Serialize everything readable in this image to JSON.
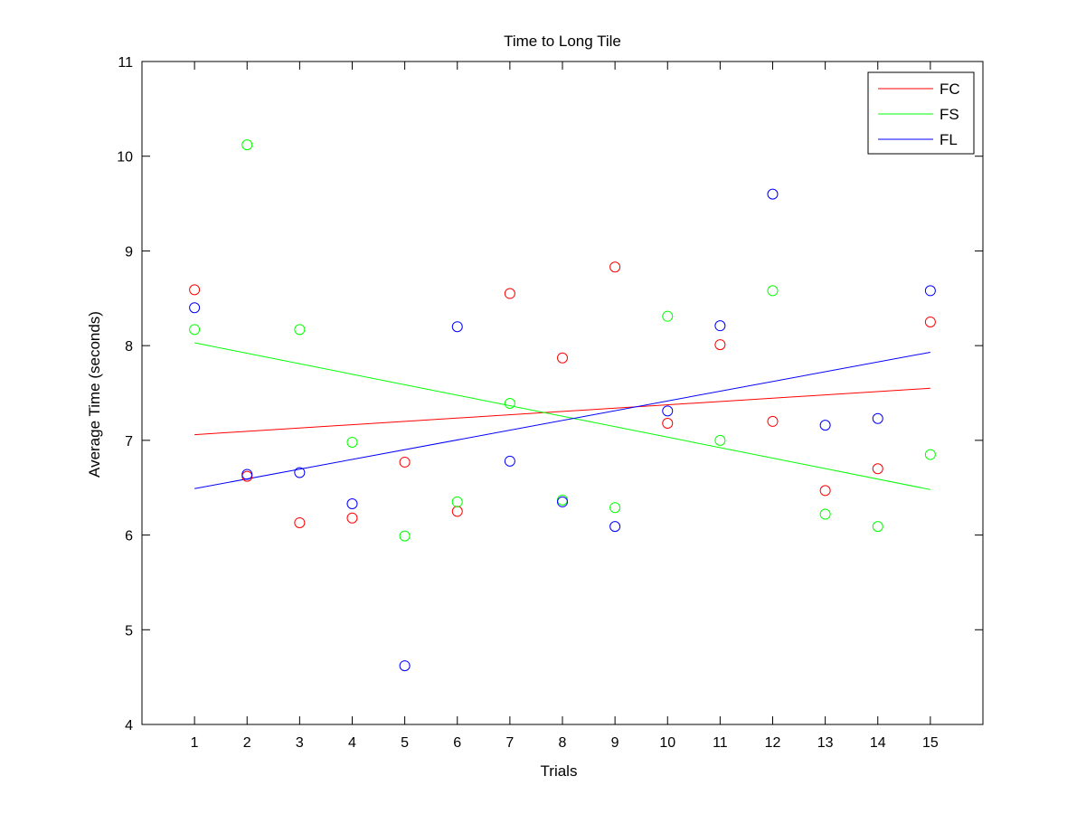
{
  "chart_data": {
    "type": "scatter",
    "title": "Time to Long Tile",
    "xlabel": "Trials",
    "ylabel": "Average Time (seconds)",
    "xlim": [
      0,
      16
    ],
    "ylim": [
      4,
      11
    ],
    "xticks": [
      1,
      2,
      3,
      4,
      5,
      6,
      7,
      8,
      9,
      10,
      11,
      12,
      13,
      14,
      15
    ],
    "yticks": [
      4,
      5,
      6,
      7,
      8,
      9,
      10,
      11
    ],
    "grid": false,
    "legend_position": "top-right",
    "x": [
      1,
      2,
      3,
      4,
      5,
      6,
      7,
      8,
      9,
      10,
      11,
      12,
      13,
      14,
      15
    ],
    "series": [
      {
        "name": "FC",
        "color": "#ff0000",
        "marker": "open-circle",
        "values": [
          8.59,
          6.62,
          6.13,
          6.18,
          6.77,
          6.25,
          8.55,
          7.87,
          8.83,
          7.18,
          8.01,
          7.2,
          6.47,
          6.7,
          8.25
        ],
        "fit_line": {
          "from": [
            1,
            7.06
          ],
          "to": [
            15,
            7.55
          ]
        }
      },
      {
        "name": "FS",
        "color": "#00ff00",
        "marker": "open-circle",
        "values": [
          8.17,
          10.12,
          8.17,
          6.98,
          5.99,
          6.35,
          7.39,
          6.37,
          6.29,
          8.31,
          7.0,
          8.58,
          6.22,
          6.09,
          6.85
        ],
        "fit_line": {
          "from": [
            1,
            8.03
          ],
          "to": [
            15,
            6.48
          ]
        }
      },
      {
        "name": "FL",
        "color": "#0000ff",
        "marker": "open-circle",
        "values": [
          8.4,
          6.64,
          6.66,
          6.33,
          4.62,
          8.2,
          6.78,
          6.35,
          6.09,
          7.31,
          8.21,
          9.6,
          7.16,
          7.23,
          8.58
        ],
        "fit_line": {
          "from": [
            1,
            6.49
          ],
          "to": [
            15,
            7.93
          ]
        }
      }
    ]
  }
}
